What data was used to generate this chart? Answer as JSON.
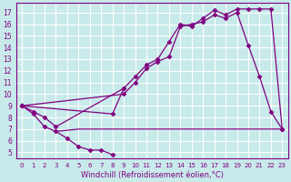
{
  "background_color": "#c8eaea",
  "grid_color": "#ffffff",
  "line_color": "#800080",
  "xlabel": "Windchill (Refroidissement éolien,°C)",
  "xlabel_color": "#800080",
  "ylabel_ticks": [
    5,
    6,
    7,
    8,
    9,
    10,
    11,
    12,
    13,
    14,
    15,
    16,
    17
  ],
  "xlabel_ticks": [
    0,
    1,
    2,
    3,
    4,
    5,
    6,
    7,
    8,
    9,
    10,
    11,
    12,
    13,
    14,
    15,
    16,
    17,
    18,
    19,
    20,
    21,
    22,
    23
  ],
  "ylim": [
    4.5,
    17.8
  ],
  "xlim": [
    -0.5,
    23.5
  ],
  "series": [
    {
      "comment": "descending line with markers: 0->9, 1->8.3, 2->7.2, 3->6.8, 4->6.2, 5->5.5, 6->5.2, 7->5.2, 8->4.8",
      "x": [
        0,
        1,
        2,
        3,
        4,
        5,
        6,
        7,
        8
      ],
      "y": [
        9.0,
        8.3,
        7.2,
        6.8,
        6.2,
        5.5,
        5.2,
        5.2,
        4.8
      ],
      "marker": "D",
      "ms": 2.5,
      "lw": 0.9
    },
    {
      "x": [
        3,
        5,
        9,
        10,
        11,
        12,
        13,
        14,
        15,
        16,
        17,
        18,
        19,
        20,
        21,
        22,
        23
      ],
      "y": [
        6.8,
        7.0,
        7.0,
        7.0,
        7.0,
        7.0,
        7.0,
        7.0,
        7.0,
        7.0,
        7.0,
        7.0,
        7.0,
        7.0,
        7.0,
        7.0,
        7.0
      ],
      "marker": null,
      "ms": 0,
      "lw": 0.9
    },
    {
      "comment": "rising line with markers: 0->9, 9->10, 10->11, 11->12.2, 12->12.8, 13->13.2, 14->15.8, 15->16, 16->16.2, 17->16.8, 18->16.5, 19->17.0, 20->14.2, 21->11.5, 22->8.5, 23->7.0",
      "x": [
        0,
        9,
        10,
        11,
        12,
        13,
        14,
        15,
        16,
        17,
        18,
        19,
        20,
        21,
        22,
        23
      ],
      "y": [
        9.0,
        10.0,
        11.0,
        12.2,
        12.8,
        13.2,
        15.8,
        16.0,
        16.2,
        16.8,
        16.5,
        17.0,
        14.2,
        11.5,
        8.5,
        7.0
      ],
      "marker": "D",
      "ms": 2.5,
      "lw": 0.9
    },
    {
      "comment": "upper rising line with markers peaking higher: 0->9, 1->8.5, 2->8.0, 3->7.2, 9->10.5, 10->11.5, 11->12.5, 12->13.0, 13->14.5, 14->16.0, 15->15.8, 16->16.5, 17->17.2, 18->16.8, 19->17.3, 20->17.3, 21->17.3, 22->17.3, 23->7.0",
      "x": [
        0,
        1,
        2,
        3,
        9,
        10,
        11,
        12,
        13,
        14,
        15,
        16,
        17,
        18,
        19,
        20,
        21,
        22,
        23
      ],
      "y": [
        9.0,
        8.5,
        8.0,
        7.2,
        10.5,
        11.5,
        12.5,
        13.0,
        14.5,
        16.0,
        15.8,
        16.5,
        17.2,
        16.8,
        17.3,
        17.3,
        17.3,
        17.3,
        7.0
      ],
      "marker": "D",
      "ms": 2.5,
      "lw": 0.9
    },
    {
      "x": [
        0,
        8,
        9
      ],
      "y": [
        9.0,
        8.3,
        10.5
      ],
      "marker": "D",
      "ms": 2.5,
      "lw": 0.9
    }
  ]
}
